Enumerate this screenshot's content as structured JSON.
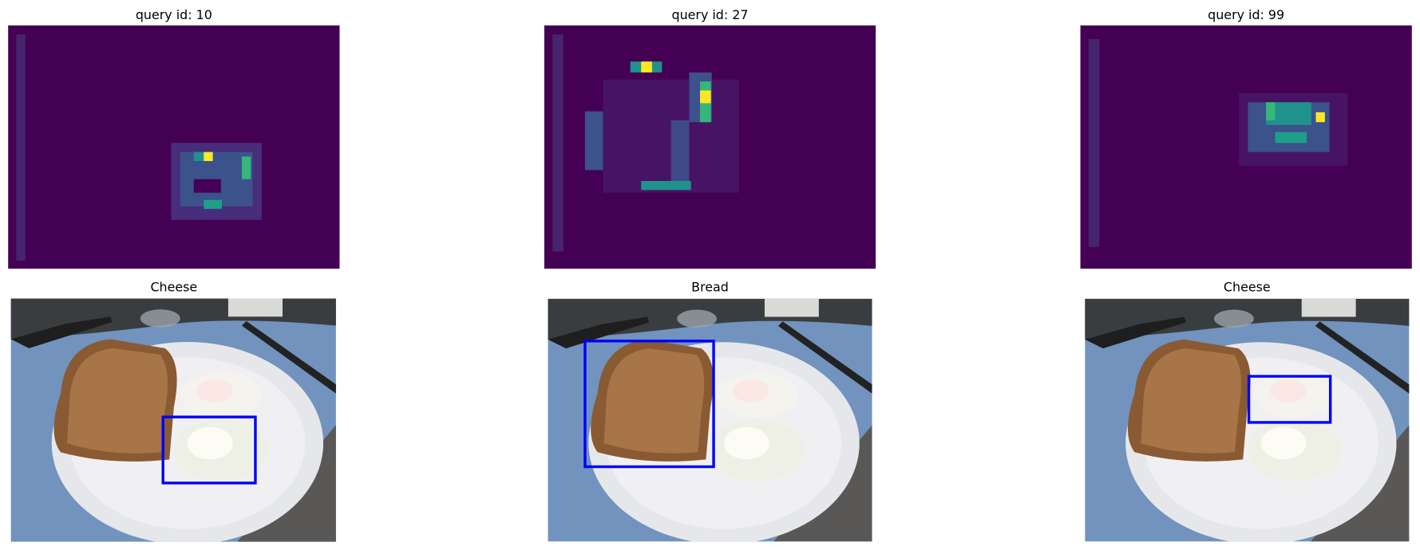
{
  "panels": [
    {
      "title": "query id: 10",
      "label": "Cheese"
    },
    {
      "title": "query id: 27",
      "label": "Bread"
    },
    {
      "title": "query id: 99",
      "label": "Cheese"
    }
  ]
}
